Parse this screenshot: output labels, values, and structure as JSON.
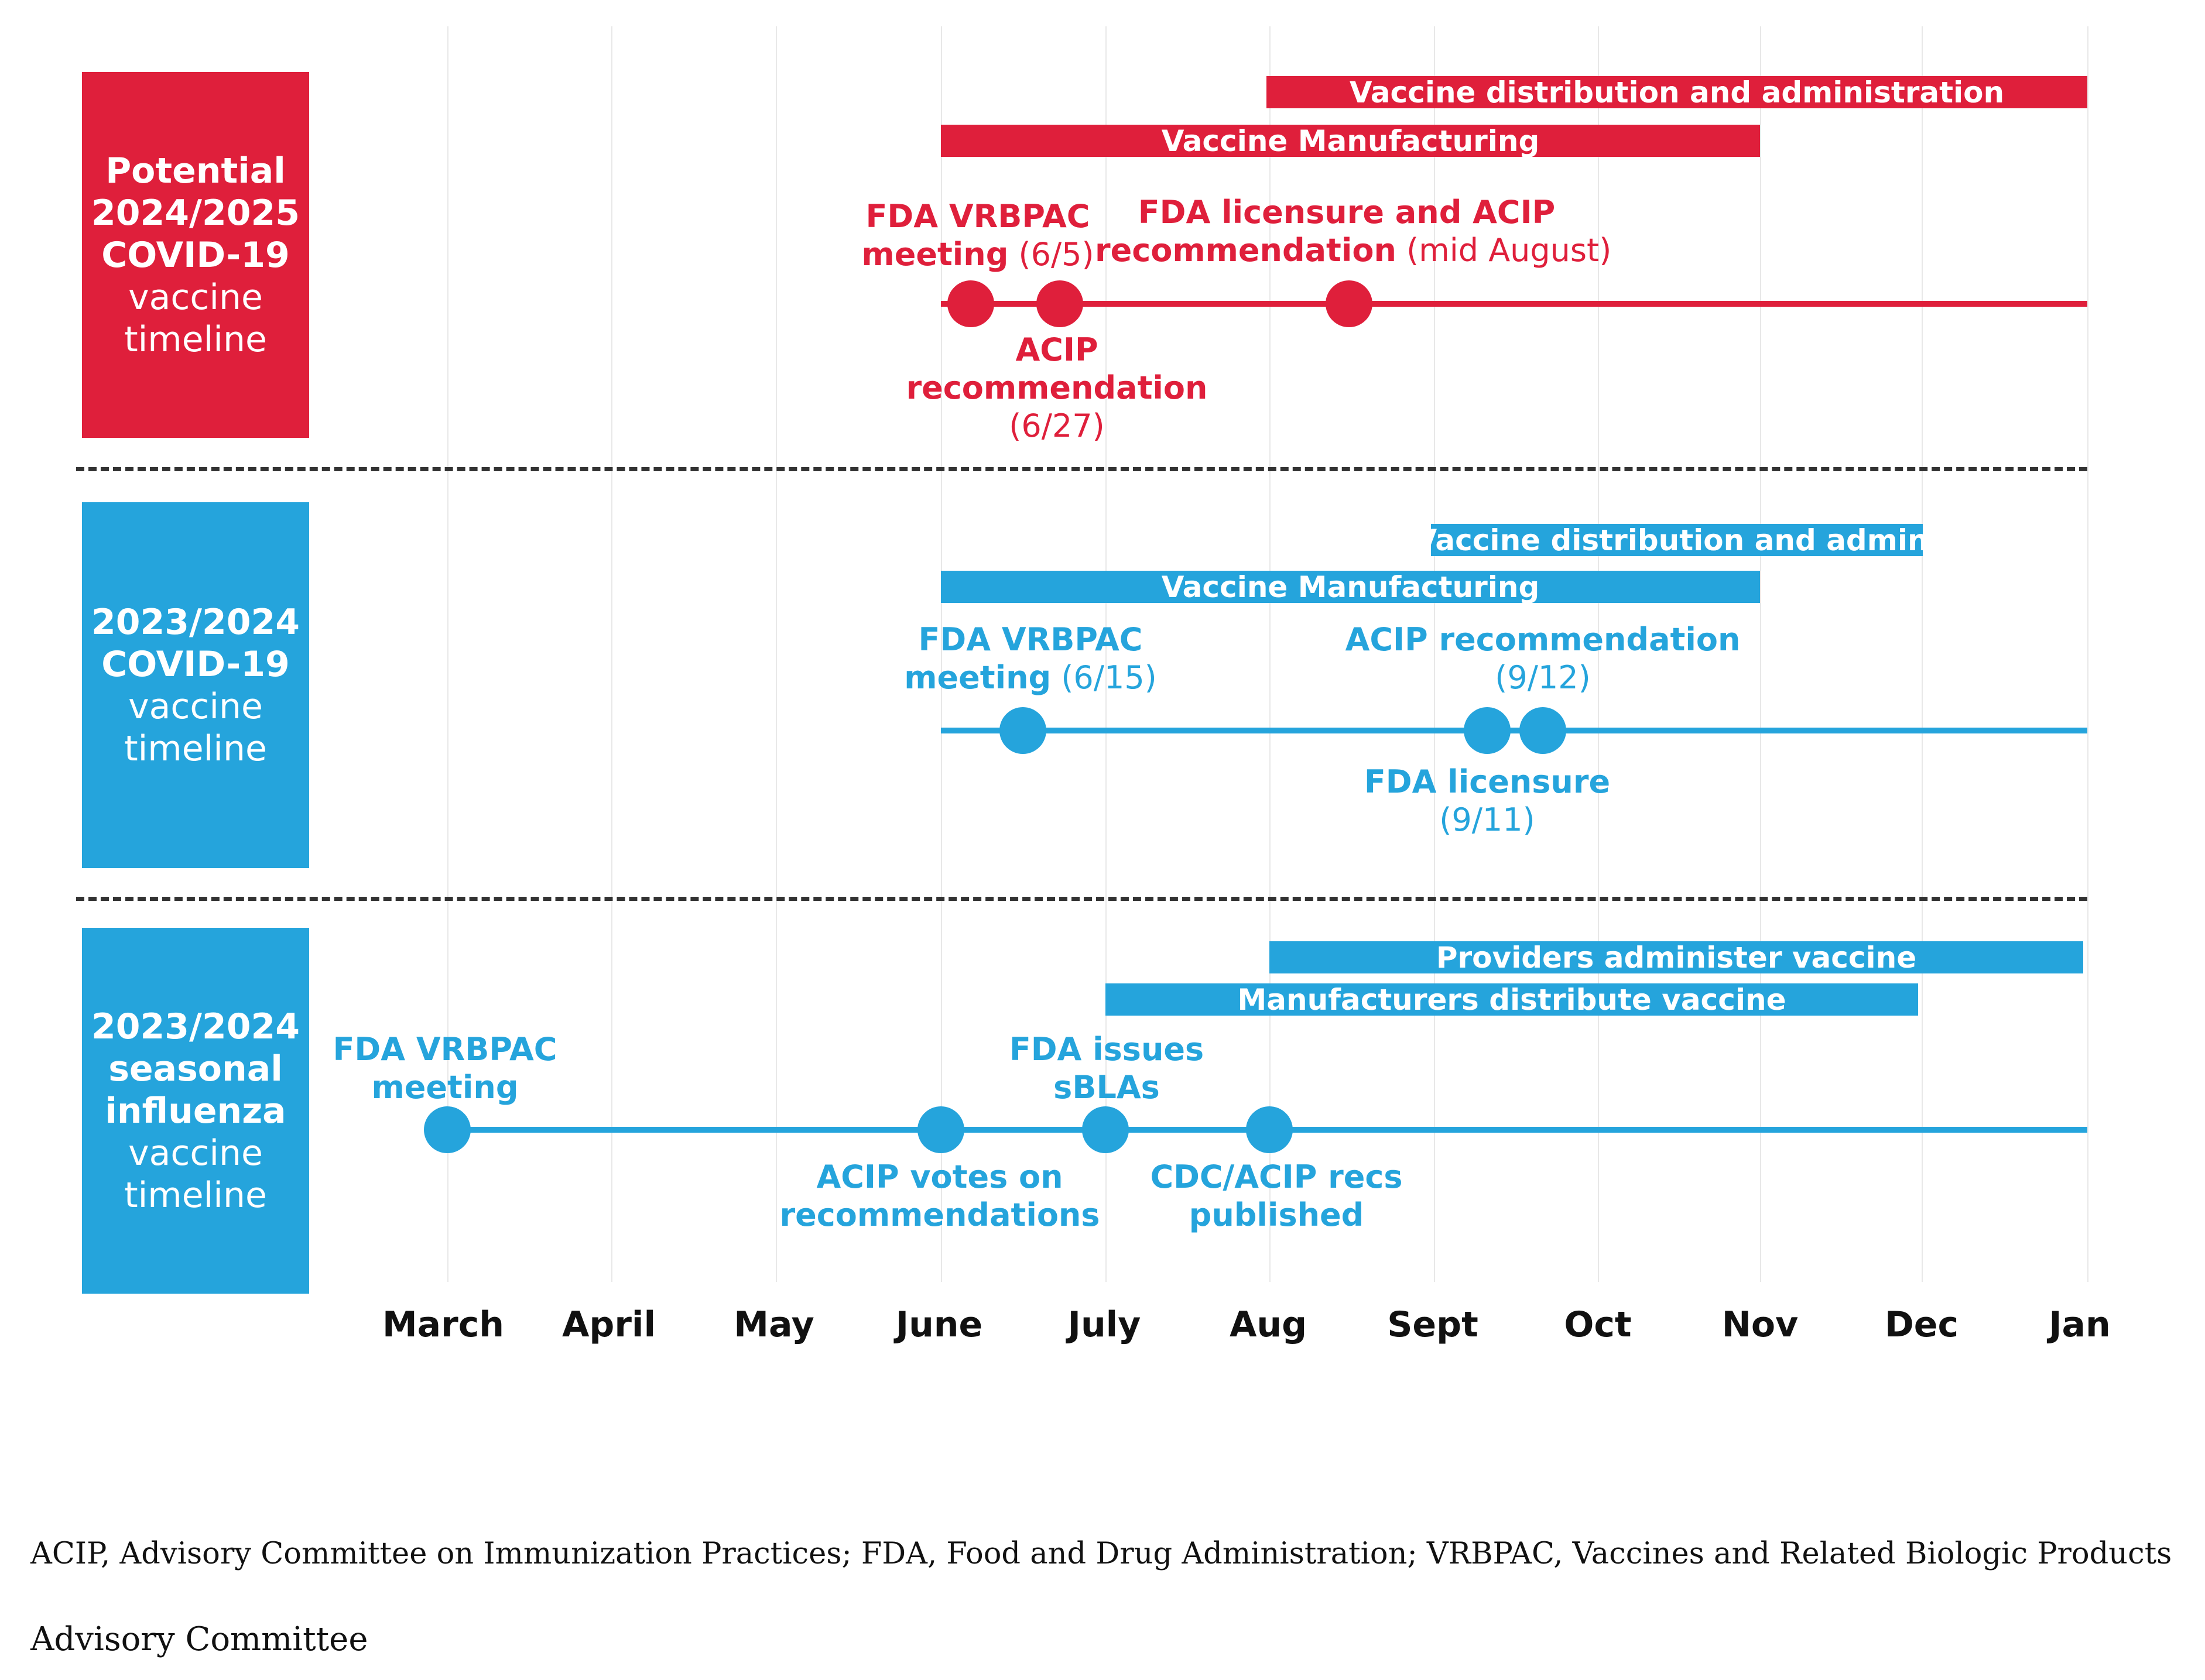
{
  "colors": {
    "covid_red": "#df1f3b",
    "covid_blue": "#25a4dc",
    "divider": "#333333",
    "gridline": "#e8e8e8"
  },
  "months": [
    "March",
    "April",
    "May",
    "June",
    "July",
    "Aug",
    "Sept",
    "Oct",
    "Nov",
    "Dec",
    "Jan"
  ],
  "section_2024_2025": {
    "label_lines": {
      "l1": "Potential",
      "l2": "2024/2025",
      "l3": "COVID-19",
      "l4": "vaccine",
      "l5": "timeline"
    },
    "bars": {
      "distribution": "Vaccine distribution and administration",
      "manufacturing": "Vaccine Manufacturing"
    },
    "events": {
      "vrbpac": {
        "title1": "FDA VRBPAC",
        "title2": "meeting",
        "date": "(6/5)"
      },
      "licensure": {
        "title1": "FDA licensure and ACIP",
        "title2": "recommendation",
        "date": "(mid August)"
      },
      "acip": {
        "title1": "ACIP",
        "title2": "recommendation",
        "date": "(6/27)"
      }
    }
  },
  "section_2023_2024_covid": {
    "label_lines": {
      "l1": "2023/2024",
      "l2": "COVID-19",
      "l3": "vaccine",
      "l4": "timeline"
    },
    "bars": {
      "distribution": "Vaccine distribution and admin.",
      "manufacturing": "Vaccine Manufacturing"
    },
    "events": {
      "vrbpac": {
        "title1": "FDA VRBPAC",
        "title2": "meeting",
        "date": "(6/15)"
      },
      "acip": {
        "title": "ACIP recommendation",
        "date": "(9/12)"
      },
      "licensure": {
        "title": "FDA licensure",
        "date": "(9/11)"
      }
    }
  },
  "section_2023_2024_flu": {
    "label_lines": {
      "l1": "2023/2024",
      "l2": "seasonal",
      "l3": "influenza",
      "l4": "vaccine",
      "l5": "timeline"
    },
    "bars": {
      "providers": "Providers administer vaccine",
      "manufacturers": "Manufacturers distribute vaccine"
    },
    "events": {
      "vrbpac": {
        "title1": "FDA VRBPAC",
        "title2": "meeting"
      },
      "sblas": {
        "title1": "FDA issues",
        "title2": "sBLAs"
      },
      "acip_votes": {
        "title1": "ACIP votes on",
        "title2": "recommendations"
      },
      "cdc_recs": {
        "title1": "CDC/ACIP recs",
        "title2": "published"
      }
    }
  },
  "footnote": {
    "line1": "ACIP, Advisory Committee on Immunization Practices; FDA, Food and Drug Administration; VRBPAC, Vaccines and Related Biologic Products",
    "line2": "Advisory Committee"
  }
}
